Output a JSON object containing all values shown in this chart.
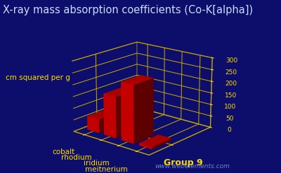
{
  "title": "X-ray mass absorption coefficients (Co-K[alpha])",
  "ylabel": "cm squared per g",
  "xlabel": "Group 9",
  "watermark": "www.webelements.com",
  "elements": [
    "cobalt",
    "rhodium",
    "iridium",
    "meitnerium"
  ],
  "values": [
    58,
    175,
    243,
    10
  ],
  "ylim": [
    0,
    300
  ],
  "yticks": [
    0,
    50,
    100,
    150,
    200,
    250,
    300
  ],
  "bar_color": "#dd0000",
  "background_color": "#0d0d6b",
  "grid_color": "#ccaa00",
  "text_color": "#ffdd00",
  "title_color": "#ccddff",
  "title_fontsize": 10.5,
  "label_fontsize": 7.5,
  "tick_fontsize": 6.5,
  "watermark_color": "#6688cc",
  "elev": 18,
  "azim": -50
}
